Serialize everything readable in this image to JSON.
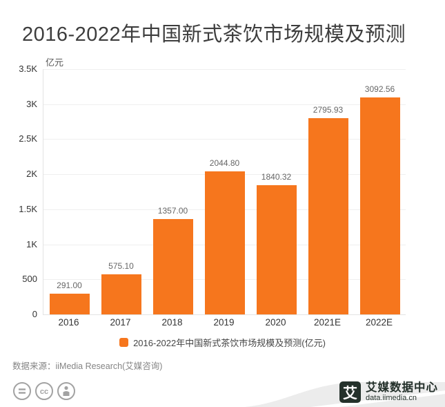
{
  "title": "2016-2022年中国新式茶饮市场规模及预测",
  "chart_data": {
    "type": "bar",
    "title": "2016-2022年中国新式茶饮市场规模及预测",
    "unit_label": "亿元",
    "categories": [
      "2016",
      "2017",
      "2018",
      "2019",
      "2020",
      "2021E",
      "2022E"
    ],
    "values": [
      291.0,
      575.1,
      1357.0,
      2044.8,
      1840.32,
      2795.93,
      3092.56
    ],
    "value_labels": [
      "291.00",
      "575.10",
      "1357.00",
      "2044.80",
      "1840.32",
      "2795.93",
      "3092.56"
    ],
    "ylim": [
      0,
      3500
    ],
    "ytick_labels_top_to_bottom": [
      "3.5K",
      "3K",
      "2.5K",
      "2K",
      "1.5K",
      "1K",
      "500",
      "0"
    ],
    "grid": true,
    "legend_label": "2016-2022年中国新式茶饮市场规模及预测(亿元)",
    "legend_position": "bottom"
  },
  "source_line": "数据来源：iiMedia Research(艾媒咨询)",
  "footer": {
    "license_icons": [
      "equals-icon",
      "cc-icon",
      "person-icon"
    ],
    "brand_glyph": "艾",
    "brand_name": "艾媒数据中心",
    "brand_url": "data.iimedia.cn"
  },
  "colors": {
    "bar": "#f6761d",
    "title_text": "#3d3d3d",
    "axis_text": "#333333",
    "value_text": "#666666",
    "grid_line": "#efefef",
    "brand_dark": "#24312b",
    "swoosh_gray": "#ececec",
    "cc_icon_gray": "#a2a2a2"
  }
}
